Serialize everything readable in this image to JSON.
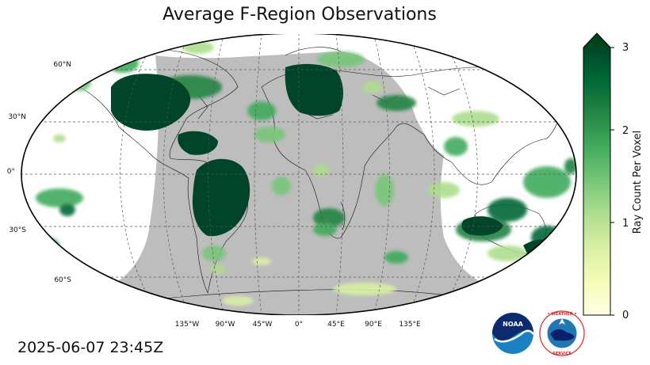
{
  "title": "Average F-Region Observations",
  "timestamp": "2025-06-07 23:45Z",
  "latitude_labels": [
    "60°N",
    "30°N",
    "0°",
    "30°S",
    "60°S"
  ],
  "longitude_labels": [
    "135°W",
    "90°W",
    "45°W",
    "0°",
    "45°E",
    "90°E",
    "135°E"
  ],
  "colorbar": {
    "label": "Ray Count Per Voxel",
    "ticks": [
      "0",
      "1",
      "2",
      "3"
    ],
    "min": 0,
    "max": 3,
    "extend": "max",
    "colors": [
      "#ffffe5",
      "#f7fcb9",
      "#d9f0a3",
      "#addd8e",
      "#78c679",
      "#41ab5d",
      "#238443",
      "#006837",
      "#004529"
    ]
  },
  "map": {
    "projection": "Robinson",
    "night_shading": "#bdbdbd",
    "gridlines": "dashed"
  },
  "logos": {
    "noaa": "NOAA",
    "nws_ring": "NATIONAL WEATHER SERVICE"
  }
}
